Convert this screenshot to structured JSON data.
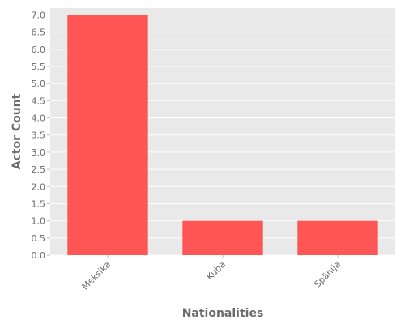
{
  "chart_data": {
    "type": "bar",
    "title": "",
    "xlabel": "Nationalities",
    "ylabel": "Actor Count",
    "categories": [
      "Meksika",
      "Kuba",
      "Spānija"
    ],
    "values": [
      7,
      1,
      1
    ],
    "ylim": [
      0,
      7.2
    ],
    "yticks": [
      "0.0",
      "0.5",
      "1.0",
      "1.5",
      "2.0",
      "2.5",
      "3.0",
      "3.5",
      "4.0",
      "4.5",
      "5.0",
      "5.5",
      "6.0",
      "6.5",
      "7.0"
    ],
    "grid": true,
    "colors": {
      "bar": "#ff5555",
      "plot_background": "#e9e9e9",
      "grid": "#ffffff",
      "text": "#6b6b6b"
    }
  }
}
